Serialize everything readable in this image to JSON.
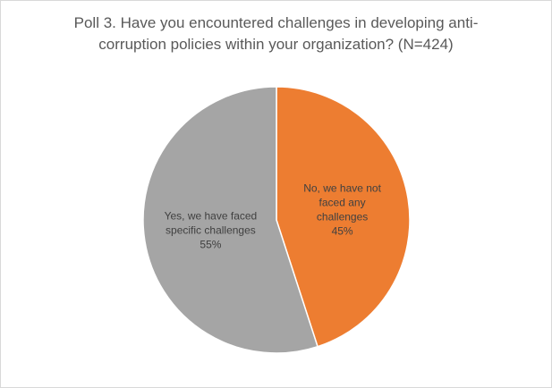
{
  "chart_data": {
    "type": "pie",
    "title_lines": [
      "Poll 3. Have you encountered challenges in developing anti-",
      "corruption policies within your organization? (N=424)"
    ],
    "slices": [
      {
        "label_lines": [
          "No, we have not",
          "faced any",
          "challenges"
        ],
        "percent_label": "45%",
        "value": 45,
        "color": "#ED7D31",
        "label_color": "#404040"
      },
      {
        "label_lines": [
          "Yes, we have faced",
          "specific challenges"
        ],
        "percent_label": "55%",
        "value": 55,
        "color": "#A5A5A5",
        "label_color": "#404040"
      }
    ],
    "start_angle_deg": 0,
    "direction": "clockwise",
    "legend": "none"
  }
}
